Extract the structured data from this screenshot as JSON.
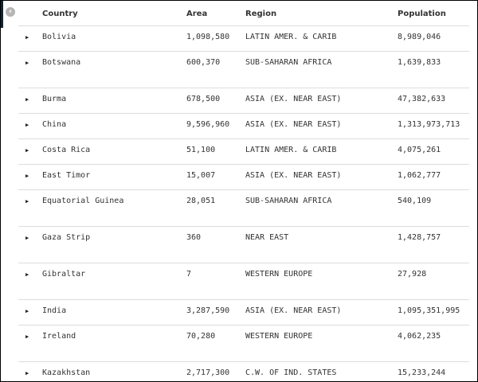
{
  "columns": [
    "Country",
    "Area",
    "Region",
    "Population"
  ],
  "rows": [
    {
      "country": "Bolivia",
      "area": "1,098,580",
      "region": "LATIN AMER. & CARIB",
      "population": "8,989,046",
      "tall": false
    },
    {
      "country": "Botswana",
      "area": "600,370",
      "region": "SUB-SAHARAN AFRICA",
      "population": "1,639,833",
      "tall": true
    },
    {
      "country": "Burma",
      "area": "678,500",
      "region": "ASIA (EX. NEAR EAST)",
      "population": "47,382,633",
      "tall": false
    },
    {
      "country": "China",
      "area": "9,596,960",
      "region": "ASIA (EX. NEAR EAST)",
      "population": "1,313,973,713",
      "tall": false
    },
    {
      "country": "Costa Rica",
      "area": "51,100",
      "region": "LATIN AMER. & CARIB",
      "population": "4,075,261",
      "tall": false
    },
    {
      "country": "East Timor",
      "area": "15,007",
      "region": "ASIA (EX. NEAR EAST)",
      "population": "1,062,777",
      "tall": false
    },
    {
      "country": "Equatorial Guinea",
      "area": "28,051",
      "region": "SUB-SAHARAN AFRICA",
      "population": "540,109",
      "tall": true
    },
    {
      "country": "Gaza Strip",
      "area": "360",
      "region": "NEAR EAST",
      "population": "1,428,757",
      "tall": true
    },
    {
      "country": "Gibraltar",
      "area": "7",
      "region": "WESTERN EUROPE",
      "population": "27,928",
      "tall": true
    },
    {
      "country": "India",
      "area": "3,287,590",
      "region": "ASIA (EX. NEAR EAST)",
      "population": "1,095,351,995",
      "tall": false
    },
    {
      "country": "Ireland",
      "area": "70,280",
      "region": "WESTERN EUROPE",
      "population": "4,062,235",
      "tall": true
    },
    {
      "country": "Kazakhstan",
      "area": "2,717,300",
      "region": "C.W. OF IND. STATES",
      "population": "15,233,244",
      "tall": false
    }
  ],
  "icons": {
    "back": "chevron-left-circle-icon",
    "expand": "triangle-right-icon"
  }
}
